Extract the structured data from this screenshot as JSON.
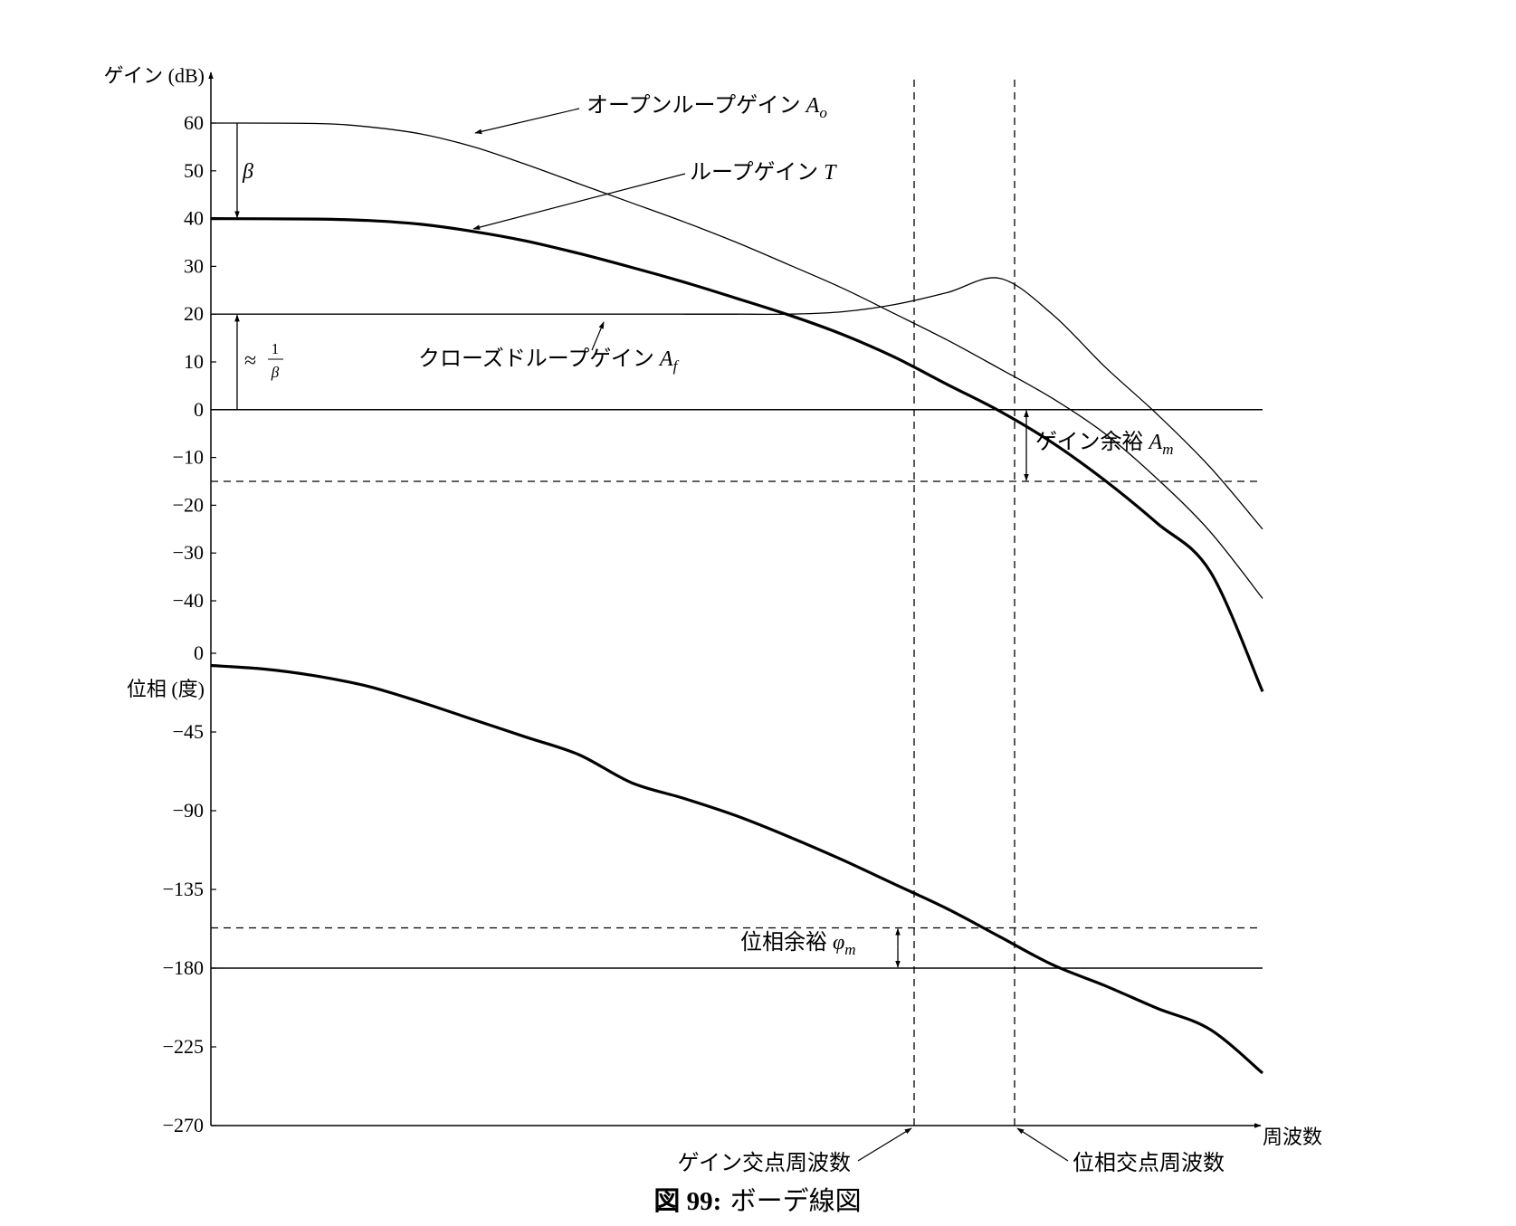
{
  "caption": {
    "label": "図 99:",
    "text": "ボーデ線図"
  },
  "chart_data": [
    {
      "type": "line",
      "panel": "gain",
      "ylabel": "ゲイン (dB)",
      "yticks": [
        "60",
        "50",
        "40",
        "30",
        "20",
        "10",
        "0",
        "−10",
        "−20",
        "−30",
        "−40"
      ],
      "ytick_values": [
        60,
        50,
        40,
        30,
        20,
        10,
        0,
        -10,
        -20,
        -30,
        -40
      ],
      "ylim": [
        -40,
        60
      ],
      "x": [
        0.0,
        0.1,
        0.15,
        0.2,
        0.25,
        0.3,
        0.35,
        0.4,
        0.45,
        0.5,
        0.55,
        0.6,
        0.65,
        0.7,
        0.75,
        0.8,
        0.85,
        0.9,
        0.95,
        1.0
      ],
      "series": [
        {
          "name": "オープンループゲイン",
          "symbol": "A",
          "subscript": "o",
          "values": [
            60,
            59.9,
            59.2,
            57.7,
            55,
            51.3,
            47.3,
            43.3,
            39.3,
            35,
            30.3,
            25.5,
            20.1,
            14.6,
            8.6,
            2.4,
            -5,
            -14.5,
            -25.5,
            -39.5
          ]
        },
        {
          "name": "ループゲイン",
          "symbol": "T",
          "subscript": "",
          "values": [
            40,
            39.9,
            39.6,
            38.8,
            37.3,
            35.3,
            32.7,
            29.8,
            26.7,
            23.3,
            19.8,
            15.8,
            11,
            5.3,
            -0.3,
            -6.9,
            -14.8,
            -23.8,
            -33.8,
            -59
          ]
        },
        {
          "name": "クローズドループゲイン",
          "symbol": "A",
          "subscript": "f",
          "values": [
            20,
            20,
            20,
            20,
            20,
            20,
            20,
            20,
            20,
            20,
            20,
            20.5,
            22,
            24.5,
            27.5,
            20,
            9,
            -1,
            -12,
            -25
          ]
        }
      ],
      "reference_lines": {
        "open_loop_level": 60,
        "loop_level": 40,
        "closed_loop_level": 20,
        "zero_db": 0,
        "gain_margin_level": -15
      },
      "annotations": [
        {
          "text": "オープンループゲイン",
          "symbol": "A",
          "sub": "o"
        },
        {
          "text": "ループゲイン",
          "symbol": "T",
          "sub": ""
        },
        {
          "text": "クローズドループゲイン",
          "symbol": "A",
          "sub": "f"
        },
        {
          "text": "ゲイン余裕",
          "symbol": "A",
          "sub": "m"
        },
        {
          "text": "β"
        },
        {
          "text": "≈",
          "frac_num": "1",
          "frac_den": "β"
        }
      ]
    },
    {
      "type": "line",
      "panel": "phase",
      "ylabel": "位相 (度)",
      "yticks": [
        "0",
        "−45",
        "−90",
        "−135",
        "−180",
        "−225",
        "−270"
      ],
      "ytick_values": [
        0,
        -45,
        -90,
        -135,
        -180,
        -225,
        -270
      ],
      "ylim": [
        -270,
        0
      ],
      "xlabel": "周波数",
      "x": [
        0.0,
        0.05,
        0.1,
        0.15,
        0.2,
        0.25,
        0.3,
        0.35,
        0.4,
        0.45,
        0.5,
        0.55,
        0.6,
        0.65,
        0.7,
        0.75,
        0.8,
        0.85,
        0.9,
        0.95,
        1.0
      ],
      "series": [
        {
          "name": "位相",
          "values": [
            -7,
            -9,
            -13,
            -19,
            -28,
            -38,
            -48,
            -58,
            -74,
            -83,
            -93,
            -105,
            -118,
            -132,
            -146,
            -162,
            -178,
            -190,
            -203,
            -215,
            -240
          ]
        }
      ],
      "reference_lines": {
        "minus_180": -180,
        "phase_margin_level": -157
      },
      "annotations": [
        {
          "text": "位相余裕",
          "symbol": "φ",
          "sub": "m"
        },
        {
          "text": "ゲイン交点周波数"
        },
        {
          "text": "位相交点周波数"
        }
      ]
    }
  ]
}
